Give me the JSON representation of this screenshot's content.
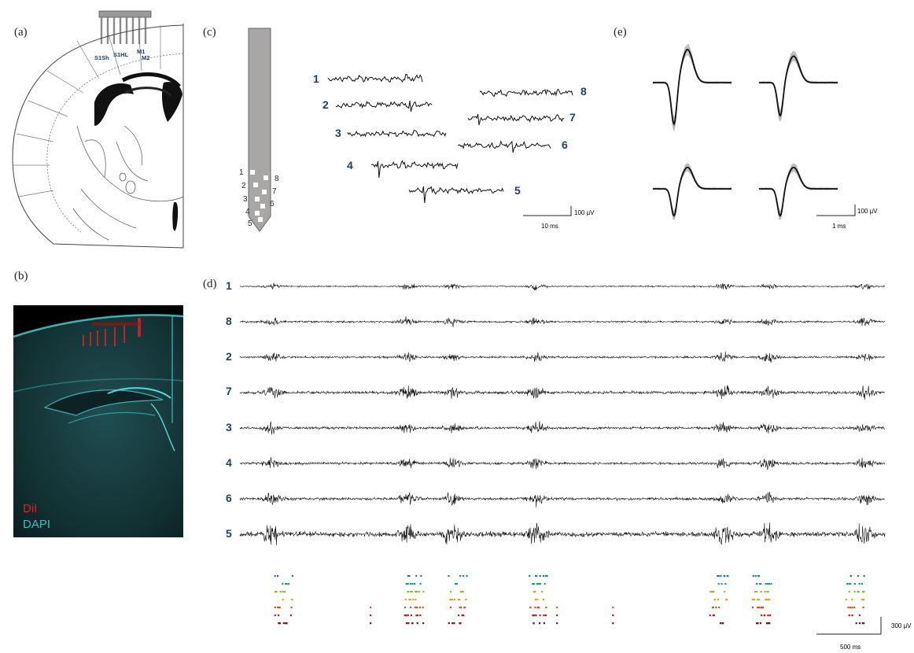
{
  "panels": {
    "a": {
      "label": "(a)",
      "regions": [
        "S1Sh",
        "S1HL",
        "M1",
        "M2"
      ]
    },
    "b": {
      "label": "(b)",
      "legend": [
        {
          "text": "DiI",
          "color": "#e02020"
        },
        {
          "text": "DAPI",
          "color": "#2ec4c4"
        }
      ]
    },
    "c": {
      "label": "(c)",
      "probe_sites_left": [
        "1",
        "2",
        "3",
        "4",
        "5"
      ],
      "probe_sites_right": [
        "8",
        "7",
        "6"
      ],
      "trace_labels": [
        "1",
        "2",
        "3",
        "4",
        "5",
        "6",
        "7",
        "8"
      ],
      "scale_amp": "100 µV",
      "scale_time": "10 ms"
    },
    "d": {
      "label": "(d)",
      "channel_order": [
        "1",
        "8",
        "2",
        "7",
        "3",
        "4",
        "6",
        "5"
      ],
      "raster_colors": [
        "#2a6fc2",
        "#1aa36b",
        "#8abf2a",
        "#e0a21a",
        "#d4541f",
        "#b81c1c",
        "#7a1010"
      ],
      "scale_amp": "300 µV",
      "scale_time": "500 ms"
    },
    "e": {
      "label": "(e)",
      "scale_amp": "100 µV",
      "scale_time": "1 ms"
    }
  },
  "colors": {
    "channel_label": "#1f3f73",
    "trace": "#111111",
    "probe": "#a9a6a6",
    "waveform_overlay": "#b9b9b9"
  }
}
